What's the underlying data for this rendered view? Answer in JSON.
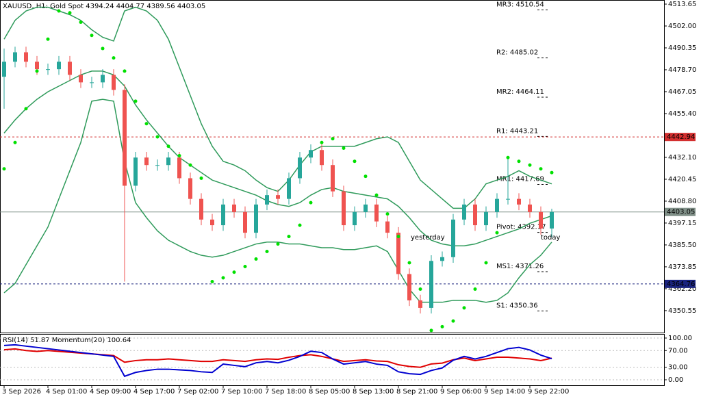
{
  "chart_data": [
    {
      "type": "candlestick",
      "title": "XAUUSD, H1:  Gold Spot  4394.24 4404.77 4389.56 4403.05",
      "categories": [
        "3 Sep 2026",
        null,
        null,
        null,
        "4 Sep 01:00",
        null,
        null,
        null,
        "4 Sep 09:00",
        null,
        null,
        null,
        "4 Sep 17:00",
        null,
        null,
        null,
        "7 Sep 02:00",
        null,
        null,
        null,
        "7 Sep 10:00",
        null,
        null,
        null,
        "7 Sep 18:00",
        null,
        null,
        null,
        "8 Sep 05:00",
        null,
        null,
        null,
        "8 Sep 13:00",
        null,
        null,
        null,
        "8 Sep 21:00",
        null,
        null,
        null,
        "9 Sep 06:00",
        null,
        null,
        null,
        "9 Sep 14:00",
        null,
        null,
        null,
        "9 Sep 22:00",
        null,
        null
      ],
      "ohlc": [
        [
          4475,
          4490,
          4458,
          4483
        ],
        [
          4483,
          4491,
          4480,
          4488
        ],
        [
          4488,
          4491,
          4480,
          4483
        ],
        [
          4483,
          4486,
          4476,
          4479
        ],
        [
          4479,
          4482,
          4476,
          4479
        ],
        [
          4479,
          4486,
          4476,
          4483
        ],
        [
          4483,
          4486,
          4473,
          4476
        ],
        [
          4476,
          4479,
          4469,
          4472
        ],
        [
          4472,
          4475,
          4469,
          4472
        ],
        [
          4472,
          4479,
          4469,
          4476
        ],
        [
          4476,
          4479,
          4465,
          4468
        ],
        [
          4468,
          4471,
          4366,
          4417
        ],
        [
          4417,
          4435,
          4414,
          4432
        ],
        [
          4432,
          4435,
          4425,
          4428
        ],
        [
          4428,
          4431,
          4425,
          4428
        ],
        [
          4428,
          4435,
          4425,
          4432
        ],
        [
          4432,
          4435,
          4418,
          4421
        ],
        [
          4421,
          4424,
          4407,
          4410
        ],
        [
          4410,
          4413,
          4396,
          4399
        ],
        [
          4399,
          4402,
          4393,
          4396
        ],
        [
          4396,
          4410,
          4393,
          4407
        ],
        [
          4407,
          4410,
          4400,
          4403
        ],
        [
          4403,
          4406,
          4389,
          4392
        ],
        [
          4392,
          4410,
          4389,
          4407
        ],
        [
          4407,
          4415,
          4404,
          4412
        ],
        [
          4412,
          4415,
          4407,
          4410
        ],
        [
          4410,
          4424,
          4407,
          4421
        ],
        [
          4421,
          4435,
          4418,
          4432
        ],
        [
          4432,
          4439,
          4429,
          4436
        ],
        [
          4436,
          4439,
          4425,
          4428
        ],
        [
          4428,
          4431,
          4411,
          4414
        ],
        [
          4414,
          4417,
          4393,
          4396
        ],
        [
          4396,
          4406,
          4393,
          4403
        ],
        [
          4403,
          4410,
          4400,
          4407
        ],
        [
          4407,
          4410,
          4395,
          4398
        ],
        [
          4398,
          4401,
          4389,
          4392
        ],
        [
          4392,
          4395,
          4367,
          4370
        ],
        [
          4370,
          4373,
          4353,
          4356
        ],
        [
          4356,
          4359,
          4349,
          4352
        ],
        [
          4352,
          4380,
          4349,
          4377
        ],
        [
          4377,
          4382,
          4374,
          4379
        ],
        [
          4379,
          4402,
          4376,
          4399
        ],
        [
          4399,
          4410,
          4396,
          4407
        ],
        [
          4407,
          4410,
          4393,
          4396
        ],
        [
          4396,
          4406,
          4393,
          4403
        ],
        [
          4403,
          4413,
          4400,
          4410
        ],
        [
          4410,
          4432,
          4407,
          4410
        ],
        [
          4410,
          4413,
          4404,
          4407
        ],
        [
          4407,
          4410,
          4400,
          4403
        ],
        [
          4403,
          4406,
          4391,
          4394.24
        ],
        [
          4394.24,
          4404.77,
          4389.56,
          4403.05
        ]
      ],
      "up_color": "#26a69a",
      "down_color": "#ef5350",
      "ylim": [
        4338.5,
        4515.83
      ],
      "yticks": [
        4513.65,
        {
          "value": 4502,
          "label": "4502.00"
        },
        4490.35,
        {
          "value": 4478.7,
          "label": "4478.70"
        },
        4467.05,
        {
          "value": 4455.4,
          "label": "4455.40"
        },
        {
          "value": 4432.1,
          "label": "4432.10"
        },
        4420.45,
        {
          "value": 4408.8,
          "label": "4408.80"
        },
        4397.15,
        {
          "value": 4385.5,
          "label": "4385.50"
        },
        4373.85,
        {
          "value": 4362.2,
          "label": "4362.20"
        },
        4350.55
      ],
      "series": [
        {
          "color": "#2e9a5a",
          "values": [
            4495,
            4505,
            4510,
            4512,
            4512,
            4510,
            4508,
            4505,
            4500,
            4496,
            4494,
            4510,
            4512,
            4510,
            4505,
            4495,
            4480,
            4465,
            4450,
            4438,
            4430,
            4428,
            4425,
            4420,
            4416,
            4414,
            4420,
            4428,
            4435,
            4438,
            4438,
            4438,
            4438,
            4440,
            4442,
            4443,
            4440,
            4430,
            4420,
            4415,
            4410,
            4405,
            4405,
            4410,
            4418,
            4420,
            4422,
            4425,
            4422,
            4420,
            4418
          ]
        },
        {
          "color": "#2e9a5a",
          "values": [
            4445,
            4452,
            4458,
            4463,
            4467,
            4470,
            4473,
            4476,
            4478,
            4478,
            4476,
            4470,
            4460,
            4452,
            4445,
            4438,
            4432,
            4428,
            4424,
            4420,
            4418,
            4416,
            4414,
            4412,
            4409,
            4407,
            4406,
            4408,
            4412,
            4415,
            4416,
            4414,
            4413,
            4412,
            4411,
            4410,
            4406,
            4400,
            4393,
            4388,
            4386,
            4385,
            4385,
            4386,
            4388,
            4390,
            4392,
            4394,
            4397,
            4399,
            4401
          ]
        },
        {
          "color": "#2e9a5a",
          "values": [
            4360,
            4365,
            4375,
            4385,
            4395,
            4410,
            4425,
            4440,
            4462,
            4463,
            4462,
            4430,
            4408,
            4400,
            4393,
            4388,
            4385,
            4382,
            4380,
            4379,
            4380,
            4382,
            4384,
            4386,
            4387,
            4387,
            4386,
            4386,
            4385,
            4384,
            4384,
            4383,
            4383,
            4384,
            4385,
            4382,
            4372,
            4362,
            4355,
            4355,
            4355,
            4356,
            4356,
            4356,
            4355,
            4356,
            4360,
            4368,
            4375,
            4380,
            4387
          ]
        }
      ],
      "sar": {
        "color": "#00e000",
        "values": [
          4426,
          4440,
          4458,
          4478,
          4495,
          4510,
          4509,
          4504,
          4497,
          4490,
          4485,
          4478,
          4462,
          4450,
          4443,
          4438,
          4433,
          4428,
          4421,
          4366,
          4368,
          4371,
          4374,
          4378,
          4382,
          4386,
          4390,
          4396,
          4408,
          4440,
          4442,
          4437,
          4430,
          4422,
          4412,
          4402,
          4390,
          4376,
          4362,
          4340,
          4342,
          4345,
          4352,
          4362,
          4376,
          4392,
          4432,
          4430,
          4428,
          4426,
          4424
        ]
      },
      "price_lines": [
        {
          "value": 4442.94,
          "color": "#d32f2f",
          "style": "dashed"
        },
        {
          "value": 4403.05,
          "color": "#7f8f87",
          "style": "solid"
        },
        {
          "value": 4364.76,
          "color": "#1a237e",
          "style": "dashed"
        }
      ],
      "pivots": [
        {
          "label": "MR3: 4510.54",
          "value": 4510.54
        },
        {
          "label": "R2: 4485.02",
          "value": 4485.02
        },
        {
          "label": "MR2: 4464.11",
          "value": 4464.11
        },
        {
          "label": "R1: 4443.21",
          "value": 4443.21
        },
        {
          "label": "MR1: 4417.69",
          "value": 4417.69
        },
        {
          "label": "Pivot: 4392.17",
          "value": 4392.17
        },
        {
          "label": "MS1: 4371.26",
          "value": 4371.26
        },
        {
          "label": "S1: 4350.36",
          "value": 4350.36
        }
      ],
      "annotations": [
        "yesterday",
        "today"
      ]
    },
    {
      "type": "line",
      "title": "RSI(14) 51.87 Momentum(20) 100.64",
      "ylim": [
        -13.1,
        109.8
      ],
      "yticks": [
        {
          "value": 100,
          "label": "100.00"
        },
        {
          "value": 70,
          "label": "70.00"
        },
        {
          "value": 30,
          "label": "30.00"
        },
        {
          "value": 0,
          "label": "0.00"
        }
      ],
      "y2lim": [
        96.5,
        104.5
      ],
      "series": [
        {
          "color": "#e00000",
          "values": [
            72,
            74,
            70,
            68,
            70,
            68,
            66,
            64,
            62,
            60,
            58,
            42,
            46,
            48,
            48,
            50,
            48,
            46,
            44,
            44,
            48,
            46,
            44,
            48,
            50,
            49,
            54,
            58,
            60,
            56,
            50,
            44,
            46,
            48,
            45,
            44,
            36,
            32,
            30,
            38,
            40,
            48,
            52,
            46,
            50,
            54,
            54,
            52,
            50,
            46,
            51.87
          ]
        },
        {
          "color": "#0000d0",
          "axis": "y2",
          "values": [
            102.7,
            102.8,
            102.6,
            102.4,
            102.2,
            102.0,
            101.8,
            101.6,
            101.4,
            101.2,
            101.0,
            97.9,
            98.5,
            98.8,
            99.0,
            99.0,
            98.9,
            98.8,
            98.6,
            98.5,
            99.8,
            99.6,
            99.4,
            100.0,
            100.2,
            100.0,
            100.4,
            101.0,
            101.8,
            101.6,
            100.6,
            99.8,
            100.0,
            100.2,
            99.8,
            99.6,
            98.6,
            98.3,
            98.2,
            98.8,
            99.2,
            100.4,
            101.0,
            100.6,
            101.0,
            101.6,
            102.2,
            102.4,
            102.0,
            101.2,
            100.64
          ]
        }
      ]
    }
  ]
}
